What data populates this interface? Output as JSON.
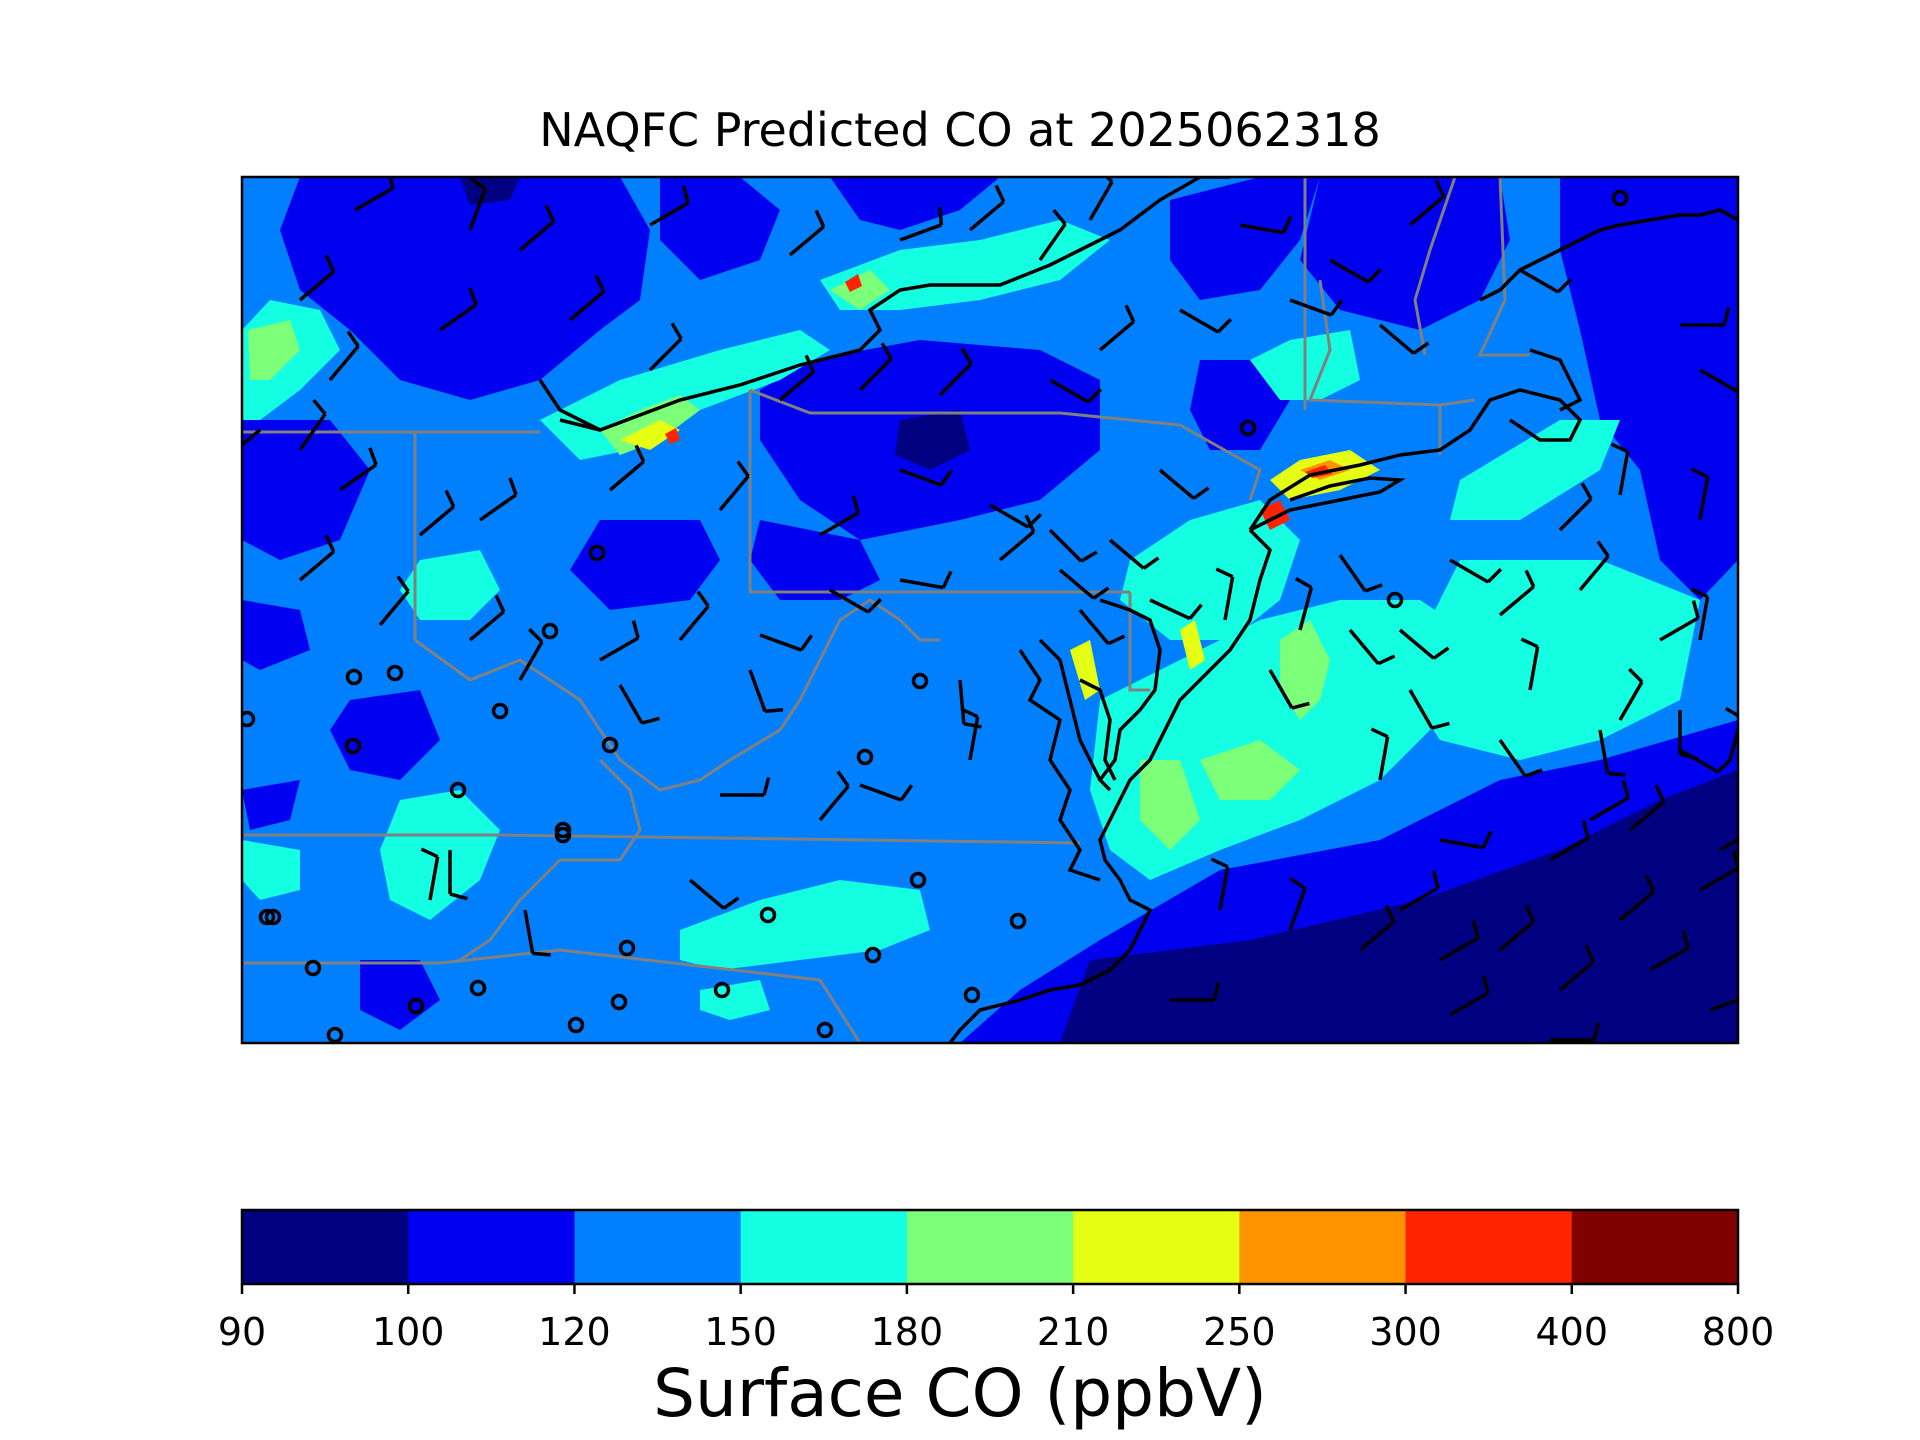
{
  "title": "NAQFC Predicted CO at 2025062318",
  "colorbar": {
    "label": "Surface CO (ppbV)",
    "bounds": [
      "90",
      "100",
      "120",
      "150",
      "180",
      "210",
      "250",
      "300",
      "400",
      "800"
    ],
    "colors": [
      "#000080",
      "#0000f1",
      "#0080ff",
      "#14ffe2",
      "#7cff79",
      "#e4ff13",
      "#ff9400",
      "#ff2300",
      "#800000"
    ]
  },
  "map": {
    "background_color": "#0080ff",
    "coastline_color": "#000000",
    "state_border_color": "#808080",
    "wind_barb_color": "#000000"
  }
}
